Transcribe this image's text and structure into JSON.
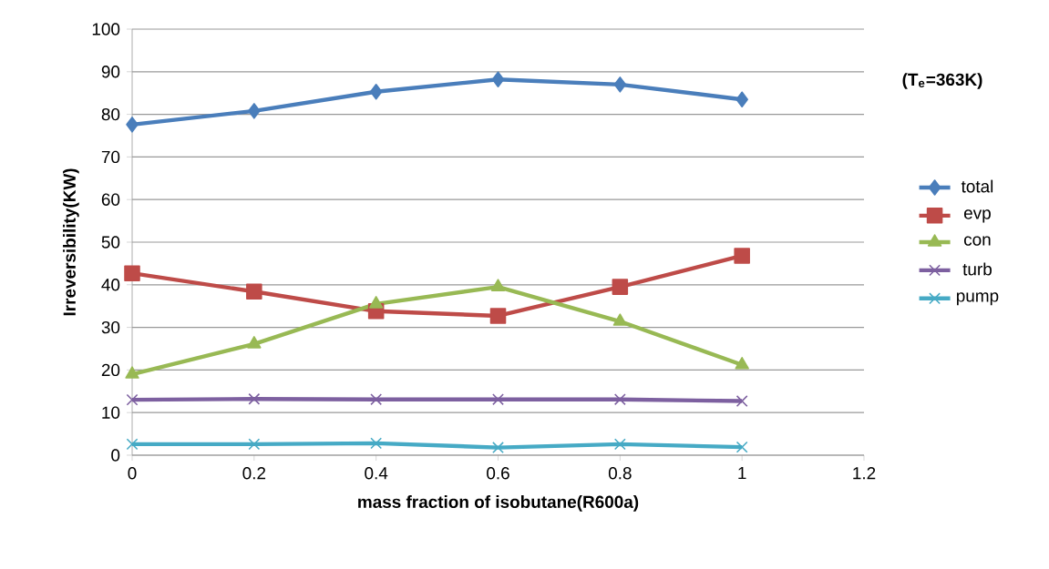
{
  "chart_data": {
    "type": "line",
    "xlabel": "mass fraction of isobutane(R600a)",
    "ylabel": "Irreversibility(KW)",
    "annotations": [
      "(T$_{e}$=363K)"
    ],
    "x": [
      0,
      0.2,
      0.4,
      0.6,
      0.8,
      1
    ],
    "series": [
      {
        "name": "total",
        "color": "#4a7ebb",
        "marker": "diamond",
        "values": [
          77.6,
          80.8,
          85.3,
          88.2,
          87.0,
          83.5
        ]
      },
      {
        "name": "evp",
        "color": "#be4b48",
        "marker": "square",
        "values": [
          42.7,
          38.4,
          33.8,
          32.7,
          39.5,
          46.8
        ]
      },
      {
        "name": "con",
        "color": "#98b954",
        "marker": "triangle",
        "values": [
          19.0,
          26.1,
          35.5,
          39.5,
          31.4,
          21.2
        ]
      },
      {
        "name": "turb",
        "color": "#7d60a0",
        "marker": "cross",
        "values": [
          13.0,
          13.2,
          13.1,
          13.1,
          13.1,
          12.7
        ]
      },
      {
        "name": "pump",
        "color": "#46aac5",
        "marker": "cross",
        "values": [
          2.6,
          2.6,
          2.8,
          1.8,
          2.6,
          1.9
        ]
      }
    ],
    "xlim": [
      0,
      1.2
    ],
    "ylim": [
      0,
      100
    ],
    "xticks": [
      0,
      0.2,
      0.4,
      0.6,
      0.8,
      1,
      1.2
    ],
    "yticks": [
      0,
      10,
      20,
      30,
      40,
      50,
      60,
      70,
      80,
      90,
      100
    ],
    "grid": "y",
    "legend": "right",
    "line_style": "solid"
  }
}
